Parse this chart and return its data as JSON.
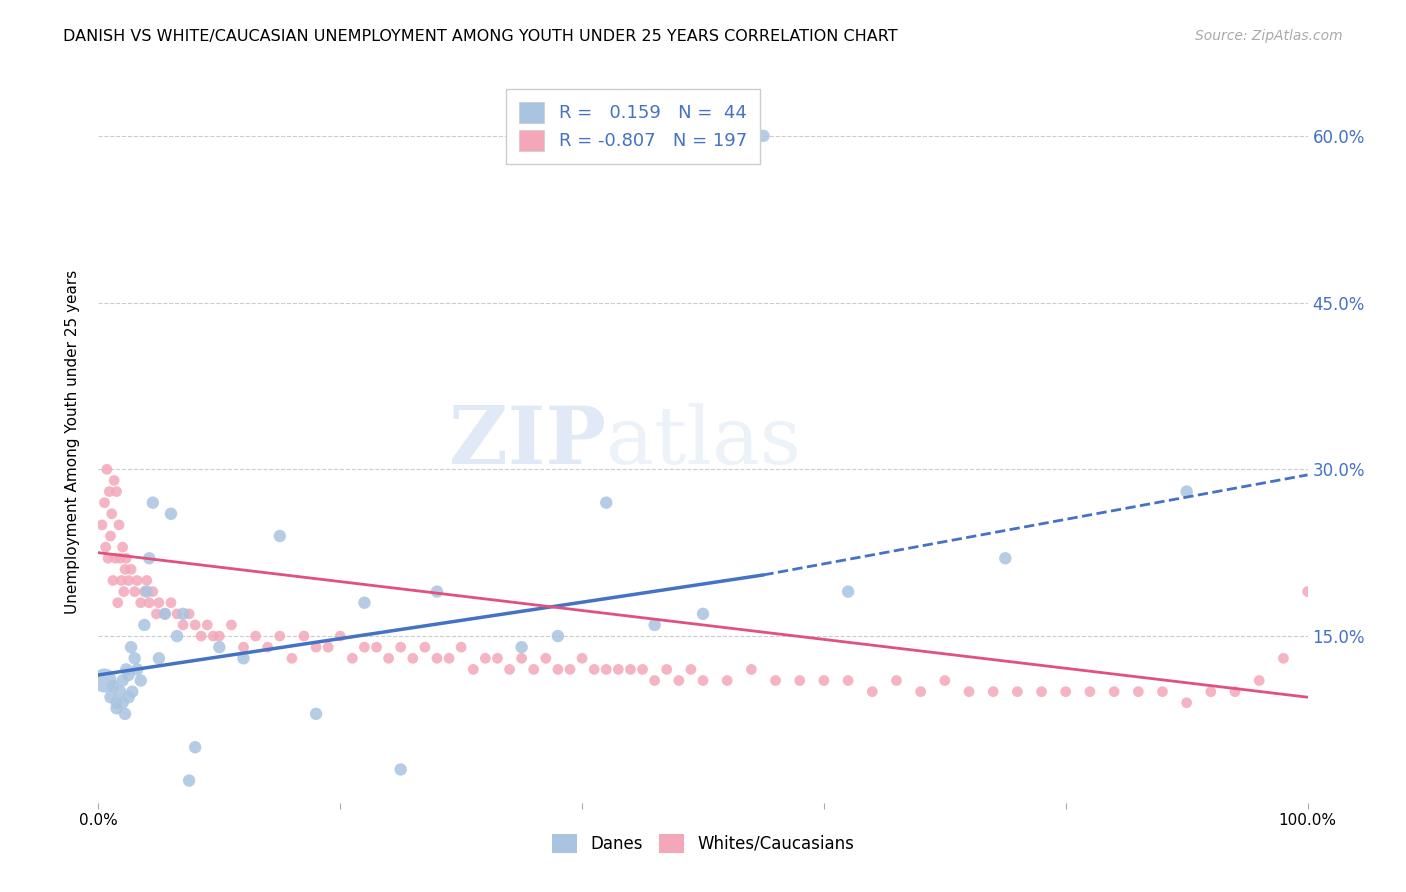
{
  "title": "DANISH VS WHITE/CAUCASIAN UNEMPLOYMENT AMONG YOUTH UNDER 25 YEARS CORRELATION CHART",
  "source": "Source: ZipAtlas.com",
  "ylabel": "Unemployment Among Youth under 25 years",
  "legend_labels": [
    "Danes",
    "Whites/Caucasians"
  ],
  "danes_color": "#a8c4e0",
  "danes_line_color": "#4472c4",
  "whites_color": "#f4a7b9",
  "whites_line_color": "#e05080",
  "danes_R": 0.159,
  "danes_N": 44,
  "whites_R": -0.807,
  "whites_N": 197,
  "danes_x": [
    0.5,
    1.0,
    1.2,
    1.5,
    1.5,
    1.8,
    2.0,
    2.0,
    2.2,
    2.3,
    2.5,
    2.5,
    2.7,
    2.8,
    3.0,
    3.2,
    3.5,
    3.8,
    4.0,
    4.2,
    4.5,
    5.0,
    5.5,
    6.0,
    6.5,
    7.0,
    7.5,
    8.0,
    10.0,
    12.0,
    15.0,
    18.0,
    22.0,
    25.0,
    28.0,
    35.0,
    38.0,
    42.0,
    46.0,
    50.0,
    55.0,
    62.0,
    75.0,
    90.0
  ],
  "danes_y": [
    11.0,
    9.5,
    10.5,
    8.5,
    9.0,
    10.0,
    9.0,
    11.0,
    8.0,
    12.0,
    9.5,
    11.5,
    14.0,
    10.0,
    13.0,
    12.0,
    11.0,
    16.0,
    19.0,
    22.0,
    27.0,
    13.0,
    17.0,
    26.0,
    15.0,
    17.0,
    2.0,
    5.0,
    14.0,
    13.0,
    24.0,
    8.0,
    18.0,
    3.0,
    19.0,
    14.0,
    15.0,
    27.0,
    16.0,
    17.0,
    60.0,
    19.0,
    22.0,
    28.0
  ],
  "danes_size": [
    300,
    80,
    80,
    80,
    80,
    80,
    80,
    80,
    80,
    80,
    80,
    80,
    80,
    80,
    80,
    80,
    80,
    80,
    80,
    80,
    80,
    80,
    80,
    80,
    80,
    80,
    80,
    80,
    80,
    80,
    80,
    80,
    80,
    80,
    80,
    80,
    80,
    80,
    80,
    80,
    80,
    80,
    80,
    80
  ],
  "whites_x": [
    0.3,
    0.5,
    0.6,
    0.7,
    0.8,
    0.9,
    1.0,
    1.1,
    1.2,
    1.3,
    1.4,
    1.5,
    1.6,
    1.7,
    1.8,
    1.9,
    2.0,
    2.1,
    2.2,
    2.3,
    2.5,
    2.7,
    3.0,
    3.2,
    3.5,
    3.8,
    4.0,
    4.2,
    4.5,
    4.8,
    5.0,
    5.5,
    6.0,
    6.5,
    7.0,
    7.5,
    8.0,
    8.5,
    9.0,
    9.5,
    10.0,
    11.0,
    12.0,
    13.0,
    14.0,
    15.0,
    16.0,
    17.0,
    18.0,
    19.0,
    20.0,
    21.0,
    22.0,
    23.0,
    24.0,
    25.0,
    26.0,
    27.0,
    28.0,
    29.0,
    30.0,
    31.0,
    32.0,
    33.0,
    34.0,
    35.0,
    36.0,
    37.0,
    38.0,
    39.0,
    40.0,
    41.0,
    42.0,
    43.0,
    44.0,
    45.0,
    46.0,
    47.0,
    48.0,
    49.0,
    50.0,
    52.0,
    54.0,
    56.0,
    58.0,
    60.0,
    62.0,
    64.0,
    66.0,
    68.0,
    70.0,
    72.0,
    74.0,
    76.0,
    78.0,
    80.0,
    82.0,
    84.0,
    86.0,
    88.0,
    90.0,
    92.0,
    94.0,
    96.0,
    98.0,
    100.0
  ],
  "whites_y": [
    25.0,
    27.0,
    23.0,
    30.0,
    22.0,
    28.0,
    24.0,
    26.0,
    20.0,
    29.0,
    22.0,
    28.0,
    18.0,
    25.0,
    22.0,
    20.0,
    23.0,
    19.0,
    21.0,
    22.0,
    20.0,
    21.0,
    19.0,
    20.0,
    18.0,
    19.0,
    20.0,
    18.0,
    19.0,
    17.0,
    18.0,
    17.0,
    18.0,
    17.0,
    16.0,
    17.0,
    16.0,
    15.0,
    16.0,
    15.0,
    15.0,
    16.0,
    14.0,
    15.0,
    14.0,
    15.0,
    13.0,
    15.0,
    14.0,
    14.0,
    15.0,
    13.0,
    14.0,
    14.0,
    13.0,
    14.0,
    13.0,
    14.0,
    13.0,
    13.0,
    14.0,
    12.0,
    13.0,
    13.0,
    12.0,
    13.0,
    12.0,
    13.0,
    12.0,
    12.0,
    13.0,
    12.0,
    12.0,
    12.0,
    12.0,
    12.0,
    11.0,
    12.0,
    11.0,
    12.0,
    11.0,
    11.0,
    12.0,
    11.0,
    11.0,
    11.0,
    11.0,
    10.0,
    11.0,
    10.0,
    11.0,
    10.0,
    10.0,
    10.0,
    10.0,
    10.0,
    10.0,
    10.0,
    10.0,
    10.0,
    9.0,
    10.0,
    10.0,
    11.0,
    13.0,
    19.0
  ],
  "watermark_zip": "ZIP",
  "watermark_atlas": "atlas",
  "bg_color": "#ffffff",
  "grid_color": "#cccccc",
  "right_axis_color": "#4472c4",
  "xlim": [
    0.0,
    100.0
  ],
  "ylim": [
    0.0,
    65.0
  ],
  "ytick_vals": [
    15.0,
    30.0,
    45.0,
    60.0
  ],
  "ytick_labels": [
    "15.0%",
    "30.0%",
    "45.0%",
    "60.0%"
  ],
  "danes_line_x0": 0.0,
  "danes_line_y0": 11.5,
  "danes_line_x1": 55.0,
  "danes_line_y1": 20.5,
  "danes_dash_x0": 55.0,
  "danes_dash_y0": 20.5,
  "danes_dash_x1": 100.0,
  "danes_dash_y1": 29.5,
  "whites_line_x0": 0.0,
  "whites_line_y0": 22.5,
  "whites_line_x1": 100.0,
  "whites_line_y1": 9.5
}
